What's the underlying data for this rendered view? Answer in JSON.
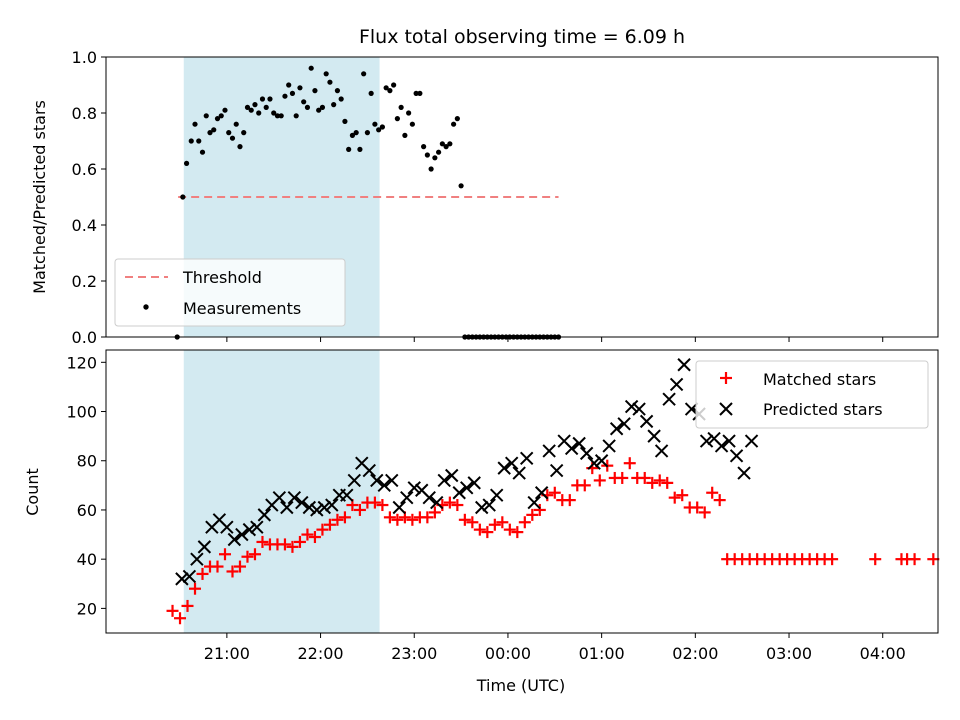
{
  "chart_data": [
    {
      "type": "scatter",
      "title": "Flux total observing time = 6.09 h",
      "xlabel": "",
      "ylabel": "Matched/Predicted stars",
      "ylim": [
        0,
        1.0
      ],
      "yticks": [
        "0.0",
        "0.2",
        "0.4",
        "0.6",
        "0.8",
        "1.0"
      ],
      "x_unit": "hours since 20:00 UTC",
      "shaded_region": {
        "x_start": 20.54,
        "x_end": 22.63,
        "color": "#d3eaf1"
      },
      "threshold": {
        "name": "Threshold",
        "value": 0.5,
        "x_range": [
          20.48,
          24.54
        ],
        "color": "#f08080",
        "dash": "dashed"
      },
      "legend": {
        "position": "lower-left",
        "entries": [
          "Threshold",
          "Measurements"
        ]
      },
      "series": [
        {
          "name": "Measurements",
          "marker": "dot",
          "color": "#000000",
          "x": [
            20.47,
            20.53,
            20.57,
            20.62,
            20.66,
            20.7,
            20.74,
            20.78,
            20.82,
            20.86,
            20.9,
            20.94,
            20.98,
            21.02,
            21.06,
            21.1,
            21.14,
            21.18,
            21.22,
            21.26,
            21.3,
            21.34,
            21.38,
            21.42,
            21.46,
            21.5,
            21.54,
            21.58,
            21.62,
            21.66,
            21.7,
            21.74,
            21.78,
            21.82,
            21.86,
            21.9,
            21.94,
            21.98,
            22.02,
            22.06,
            22.1,
            22.14,
            22.18,
            22.22,
            22.26,
            22.3,
            22.34,
            22.38,
            22.42,
            22.46,
            22.5,
            22.54,
            22.58,
            22.62,
            22.66,
            22.7,
            22.74,
            22.78,
            22.82,
            22.86,
            22.9,
            22.94,
            22.98,
            23.02,
            23.06,
            23.1,
            23.14,
            23.18,
            23.22,
            23.26,
            23.3,
            23.34,
            23.38,
            23.42,
            23.46,
            23.5,
            23.54,
            23.58,
            23.62,
            23.66,
            23.7,
            23.74,
            23.78,
            23.82,
            23.86,
            23.9,
            23.94,
            23.98,
            24.02,
            24.06,
            24.1,
            24.14,
            24.18,
            24.22,
            24.26,
            24.3,
            24.34,
            24.38,
            24.42,
            24.46,
            24.5,
            24.54
          ],
          "y": [
            0.0,
            0.5,
            0.62,
            0.7,
            0.76,
            0.7,
            0.66,
            0.79,
            0.73,
            0.74,
            0.78,
            0.79,
            0.81,
            0.73,
            0.71,
            0.76,
            0.68,
            0.73,
            0.82,
            0.81,
            0.83,
            0.8,
            0.85,
            0.82,
            0.85,
            0.8,
            0.79,
            0.79,
            0.86,
            0.9,
            0.87,
            0.79,
            0.89,
            0.84,
            0.82,
            0.96,
            0.88,
            0.81,
            0.82,
            0.94,
            0.91,
            0.83,
            0.88,
            0.85,
            0.77,
            0.67,
            0.72,
            0.73,
            0.67,
            0.94,
            0.73,
            0.87,
            0.76,
            0.74,
            0.75,
            0.89,
            0.88,
            0.9,
            0.78,
            0.82,
            0.72,
            0.8,
            0.76,
            0.87,
            0.87,
            0.68,
            0.65,
            0.6,
            0.64,
            0.66,
            0.69,
            0.68,
            0.69,
            0.76,
            0.78,
            0.54,
            0.0,
            0.0,
            0.0,
            0.0,
            0.0,
            0.0,
            0.0,
            0.0,
            0.0,
            0.0,
            0.0,
            0.0,
            0.0,
            0.0,
            0.0,
            0.0,
            0.0,
            0.0,
            0.0,
            0.0,
            0.0,
            0.0,
            0.0,
            0.0,
            0.0,
            0.0
          ]
        }
      ]
    },
    {
      "type": "scatter",
      "title": "",
      "xlabel": "Time (UTC)",
      "ylabel": "Count",
      "ylim": [
        10,
        125
      ],
      "yticks": [
        "20",
        "40",
        "60",
        "80",
        "100",
        "120"
      ],
      "xticks": [
        "21:00",
        "22:00",
        "23:00",
        "00:00",
        "01:00",
        "02:00",
        "03:00",
        "04:00"
      ],
      "x_unit": "hours since 20:00 UTC",
      "xlim": [
        19.71,
        28.59
      ],
      "shaded_region": {
        "x_start": 20.54,
        "x_end": 22.63,
        "color": "#d3eaf1"
      },
      "legend": {
        "position": "top-right",
        "entries": [
          "Matched stars",
          "Predicted stars"
        ]
      },
      "series": [
        {
          "name": "Matched stars",
          "marker": "plus",
          "color": "#ff0000",
          "x": [
            20.42,
            20.5,
            20.58,
            20.66,
            20.74,
            20.82,
            20.9,
            20.98,
            21.06,
            21.14,
            21.22,
            21.3,
            21.38,
            21.46,
            21.54,
            21.62,
            21.7,
            21.78,
            21.86,
            21.94,
            22.02,
            22.1,
            22.18,
            22.26,
            22.34,
            22.42,
            22.5,
            22.58,
            22.66,
            22.74,
            22.82,
            22.9,
            22.98,
            23.06,
            23.14,
            23.22,
            23.3,
            23.38,
            23.46,
            23.54,
            23.62,
            23.7,
            23.78,
            23.86,
            23.94,
            24.02,
            24.1,
            24.18,
            24.26,
            24.34,
            24.42,
            24.5,
            24.58,
            24.66,
            24.74,
            24.82,
            24.9,
            24.98,
            25.06,
            25.14,
            25.22,
            25.3,
            25.38,
            25.46,
            25.54,
            25.62,
            25.7,
            25.78,
            25.86,
            25.94,
            26.02,
            26.1,
            26.18,
            26.26,
            26.34,
            26.42,
            26.5,
            26.58,
            26.66,
            26.74,
            26.82,
            26.9,
            26.98,
            27.06,
            27.14,
            27.22,
            27.3,
            27.38,
            27.46,
            27.92,
            28.2,
            28.26,
            28.34,
            28.54
          ],
          "y": [
            19,
            16,
            21,
            28,
            34,
            37,
            37,
            42,
            35,
            37,
            41,
            42,
            47,
            46,
            46,
            46,
            45,
            47,
            50,
            49,
            52,
            54,
            56,
            57,
            62,
            60,
            63,
            63,
            62,
            57,
            56,
            57,
            56,
            57,
            57,
            59,
            62,
            63,
            62,
            56,
            55,
            52,
            51,
            54,
            55,
            52,
            51,
            55,
            58,
            60,
            66,
            67,
            64,
            64,
            70,
            70,
            77,
            72,
            78,
            73,
            73,
            79,
            73,
            73,
            71,
            72,
            71,
            65,
            66,
            61,
            61,
            59,
            67,
            64,
            40,
            40,
            40,
            40,
            40,
            40,
            40,
            40,
            40,
            40,
            40,
            40,
            40,
            40,
            40,
            40,
            40,
            40,
            40,
            40
          ]
        },
        {
          "name": "Predicted stars",
          "marker": "x",
          "color": "#000000",
          "x": [
            20.52,
            20.6,
            20.68,
            20.76,
            20.84,
            20.92,
            21.0,
            21.08,
            21.16,
            21.24,
            21.32,
            21.4,
            21.48,
            21.56,
            21.64,
            21.72,
            21.8,
            21.88,
            21.96,
            22.04,
            22.12,
            22.2,
            22.28,
            22.36,
            22.44,
            22.52,
            22.6,
            22.68,
            22.76,
            22.84,
            22.92,
            23.0,
            23.08,
            23.16,
            23.24,
            23.32,
            23.4,
            23.48,
            23.56,
            23.64,
            23.72,
            23.8,
            23.88,
            23.96,
            24.04,
            24.12,
            24.2,
            24.28,
            24.36,
            24.44,
            24.52,
            24.6,
            24.68,
            24.76,
            24.84,
            24.92,
            25.0,
            25.08,
            25.16,
            25.24,
            25.32,
            25.4,
            25.48,
            25.56,
            25.64,
            25.72,
            25.8,
            25.88,
            25.96,
            26.04,
            26.12,
            26.2,
            26.28,
            26.36,
            26.44,
            26.52,
            26.6
          ],
          "y": [
            32,
            33,
            40,
            45,
            53,
            56,
            53,
            48,
            50,
            52,
            53,
            58,
            62,
            65,
            61,
            65,
            63,
            61,
            60,
            61,
            62,
            66,
            66,
            72,
            79,
            76,
            72,
            70,
            72,
            61,
            65,
            69,
            68,
            65,
            63,
            72,
            74,
            67,
            69,
            71,
            61,
            62,
            66,
            77,
            79,
            75,
            81,
            63,
            67,
            84,
            76,
            88,
            85,
            87,
            83,
            79,
            80,
            86,
            93,
            95,
            102,
            101,
            96,
            90,
            84,
            105,
            111,
            119,
            101,
            99,
            88,
            89,
            86,
            88,
            82,
            75,
            88
          ]
        }
      ]
    }
  ]
}
